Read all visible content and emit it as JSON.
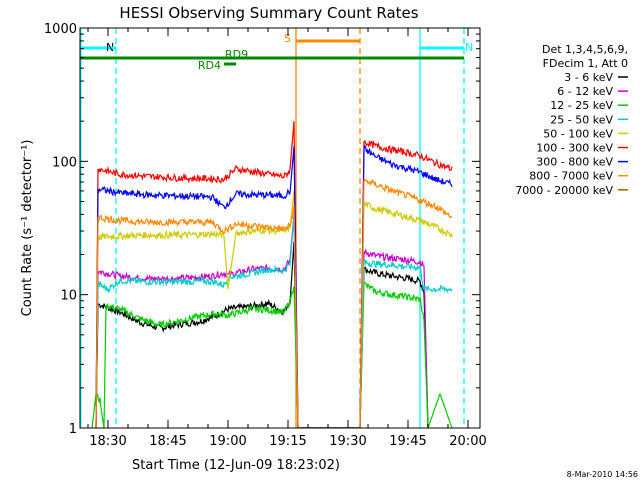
{
  "chart_data": {
    "type": "line",
    "title": "HESSI Observing Summary Count Rates",
    "xlabel": "Start Time (12-Jun-09 18:23:02)",
    "ylabel": "Count Rate (s⁻¹ detector⁻¹)",
    "yscale": "log",
    "xlim_min": [
      23.0,
      123.0
    ],
    "ylim": [
      1,
      1000
    ],
    "x_tick_labels": [
      "18:30",
      "18:45",
      "19:00",
      "19:15",
      "19:30",
      "19:45",
      "20:00"
    ],
    "x_tick_minutes": [
      30,
      45,
      60,
      75,
      90,
      105,
      120
    ],
    "y_tick_labels": [
      "1",
      "10",
      "100",
      "1000"
    ],
    "y_tick_values": [
      1,
      10,
      100,
      1000
    ],
    "legend_placement": "right",
    "legend_header": [
      "Det 1,3,4,5,6,9,",
      "FDecim 1, Att 0"
    ],
    "series": [
      {
        "name": "3 - 6 keV",
        "color": "#000000",
        "points": [
          [
            27,
            1
          ],
          [
            27.5,
            8.5
          ],
          [
            29,
            8.2
          ],
          [
            33,
            7.4
          ],
          [
            38,
            6.2
          ],
          [
            43,
            5.6
          ],
          [
            48,
            6.0
          ],
          [
            53,
            6.3
          ],
          [
            57,
            7.0
          ],
          [
            60,
            7.8
          ],
          [
            66,
            8.2
          ],
          [
            70,
            8.6
          ],
          [
            74,
            7.4
          ],
          [
            75.5,
            9
          ],
          [
            76.5,
            25
          ],
          [
            77.5,
            1
          ],
          [
            93,
            1
          ],
          [
            94,
            15.5
          ],
          [
            97,
            14.5
          ],
          [
            101,
            13.8
          ],
          [
            105,
            13.2
          ],
          [
            108,
            12.6
          ],
          [
            109,
            10.5
          ],
          [
            110,
            1
          ]
        ]
      },
      {
        "name": "6 - 12 keV",
        "color": "#cc00cc",
        "points": [
          [
            27,
            1
          ],
          [
            27.5,
            15
          ],
          [
            33,
            13.8
          ],
          [
            40,
            13.2
          ],
          [
            48,
            13.2
          ],
          [
            56,
            13.8
          ],
          [
            59,
            14.5
          ],
          [
            60,
            14
          ],
          [
            66,
            15.5
          ],
          [
            70,
            15.8
          ],
          [
            74,
            15.5
          ],
          [
            75.5,
            18
          ],
          [
            76.5,
            40
          ],
          [
            77.5,
            1
          ],
          [
            93,
            1
          ],
          [
            94,
            21
          ],
          [
            97,
            19.5
          ],
          [
            101,
            18.8
          ],
          [
            105,
            18.2
          ],
          [
            108,
            17.6
          ],
          [
            109,
            16.5
          ],
          [
            110,
            1
          ]
        ]
      },
      {
        "name": "12 - 25 keV",
        "color": "#00cc00",
        "points": [
          [
            26,
            1
          ],
          [
            27,
            1.8
          ],
          [
            28,
            1.6
          ],
          [
            29,
            1
          ],
          [
            29.5,
            8.3
          ],
          [
            33,
            7.8
          ],
          [
            38,
            6.6
          ],
          [
            43,
            5.9
          ],
          [
            48,
            6.4
          ],
          [
            52,
            6.8
          ],
          [
            57,
            7.2
          ],
          [
            60,
            7.0
          ],
          [
            66,
            7.8
          ],
          [
            70,
            7.7
          ],
          [
            74,
            7.3
          ],
          [
            75.5,
            9
          ],
          [
            76.5,
            12
          ],
          [
            77.5,
            1
          ],
          [
            93,
            1
          ],
          [
            94,
            12
          ],
          [
            97,
            10.5
          ],
          [
            101,
            10
          ],
          [
            105,
            9.6
          ],
          [
            108,
            9.2
          ],
          [
            109,
            6.5
          ],
          [
            110,
            1
          ],
          [
            113,
            1.8
          ],
          [
            116,
            1
          ]
        ]
      },
      {
        "name": "25 - 50 keV",
        "color": "#00cccc",
        "points": [
          [
            27,
            1
          ],
          [
            27.5,
            12
          ],
          [
            30,
            11
          ],
          [
            33,
            12.8
          ],
          [
            40,
            12.5
          ],
          [
            48,
            12.5
          ],
          [
            56,
            12.6
          ],
          [
            59,
            11.8
          ],
          [
            60,
            13.5
          ],
          [
            66,
            14.5
          ],
          [
            70,
            15.5
          ],
          [
            74,
            15.2
          ],
          [
            75.5,
            17
          ],
          [
            76.5,
            40
          ],
          [
            77.5,
            1
          ],
          [
            93,
            1
          ],
          [
            94,
            17.5
          ],
          [
            97,
            17
          ],
          [
            101,
            16.7
          ],
          [
            105,
            16.2
          ],
          [
            108,
            16
          ],
          [
            109,
            11
          ],
          [
            113,
            11
          ],
          [
            116,
            11
          ]
        ]
      },
      {
        "name": "50 - 100 keV",
        "color": "#cccc00",
        "points": [
          [
            27,
            1
          ],
          [
            27.5,
            27
          ],
          [
            33,
            27.5
          ],
          [
            40,
            28
          ],
          [
            48,
            28
          ],
          [
            56,
            28.5
          ],
          [
            59,
            28
          ],
          [
            60,
            11
          ],
          [
            62,
            29
          ],
          [
            66,
            30
          ],
          [
            70,
            30.5
          ],
          [
            74,
            30
          ],
          [
            75.5,
            32
          ],
          [
            76.5,
            60
          ],
          [
            77.5,
            1
          ],
          [
            93,
            1
          ],
          [
            94,
            48
          ],
          [
            97,
            44
          ],
          [
            101,
            41
          ],
          [
            105,
            38
          ],
          [
            108,
            36
          ],
          [
            112,
            32
          ],
          [
            116,
            28
          ]
        ]
      },
      {
        "name": "100 - 300 keV",
        "color": "#ff0000",
        "points": [
          [
            27,
            1
          ],
          [
            27.5,
            88
          ],
          [
            30,
            84
          ],
          [
            33,
            80
          ],
          [
            40,
            77
          ],
          [
            48,
            75
          ],
          [
            56,
            74
          ],
          [
            59,
            73
          ],
          [
            62,
            88
          ],
          [
            66,
            84
          ],
          [
            70,
            80
          ],
          [
            74,
            77
          ],
          [
            75.5,
            85
          ],
          [
            76.5,
            200
          ],
          [
            77.5,
            1
          ],
          [
            93,
            1
          ],
          [
            94,
            140
          ],
          [
            97,
            130
          ],
          [
            101,
            122
          ],
          [
            105,
            116
          ],
          [
            108,
            110
          ],
          [
            112,
            97
          ],
          [
            116,
            87
          ]
        ]
      },
      {
        "name": "300 - 800 keV",
        "color": "#0000ff",
        "points": [
          [
            27,
            1
          ],
          [
            27.5,
            62
          ],
          [
            30,
            60
          ],
          [
            33,
            58
          ],
          [
            40,
            56
          ],
          [
            48,
            55
          ],
          [
            56,
            54
          ],
          [
            59,
            45
          ],
          [
            62,
            57
          ],
          [
            66,
            56
          ],
          [
            70,
            56
          ],
          [
            74,
            55
          ],
          [
            75.5,
            60
          ],
          [
            76.5,
            130
          ],
          [
            77.5,
            1
          ],
          [
            93,
            1
          ],
          [
            94,
            125
          ],
          [
            97,
            108
          ],
          [
            101,
            95
          ],
          [
            105,
            88
          ],
          [
            108,
            83
          ],
          [
            112,
            73
          ],
          [
            116,
            67
          ]
        ]
      },
      {
        "name": "800 - 7000 keV",
        "color": "#ff8800",
        "points": [
          [
            27,
            1
          ],
          [
            27.5,
            38
          ],
          [
            30,
            37
          ],
          [
            33,
            36
          ],
          [
            40,
            35
          ],
          [
            48,
            35
          ],
          [
            56,
            35
          ],
          [
            59,
            30
          ],
          [
            62,
            34
          ],
          [
            66,
            33
          ],
          [
            70,
            32
          ],
          [
            74,
            31
          ],
          [
            75.5,
            33
          ],
          [
            76.5,
            45
          ],
          [
            77.5,
            1
          ],
          [
            93,
            1
          ],
          [
            94,
            72
          ],
          [
            97,
            67
          ],
          [
            101,
            60
          ],
          [
            105,
            55
          ],
          [
            108,
            51
          ],
          [
            112,
            46
          ],
          [
            116,
            38
          ]
        ]
      },
      {
        "name": "7000 - 20000 keV",
        "color": "#996600",
        "points": []
      }
    ],
    "annotations": [
      {
        "label": "N",
        "color": "#00ffff",
        "start_min": 23,
        "end_min": 32
      },
      {
        "label": "N",
        "color": "#00ffff",
        "start_min": 108,
        "end_min": 119
      },
      {
        "label": "S",
        "color": "#ff8800",
        "start_min": 77,
        "end_min": 93
      },
      {
        "label": "RD9",
        "color": "#008800",
        "start_min": 23,
        "end_min": 119
      },
      {
        "label": "RD4",
        "color": "#008800",
        "start_min": 59,
        "end_min": 62
      }
    ],
    "vertical_markers": [
      {
        "color": "#00ffff",
        "style": "solid",
        "at_min": 23.2
      },
      {
        "color": "#00ffff",
        "style": "dashed",
        "at_min": 32
      },
      {
        "color": "#00ffff",
        "style": "solid",
        "at_min": 108
      },
      {
        "color": "#00ffff",
        "style": "dashed",
        "at_min": 119
      },
      {
        "color": "#ff8800",
        "style": "solid",
        "at_min": 77
      },
      {
        "color": "#ff8800",
        "style": "dashed",
        "at_min": 93
      }
    ]
  },
  "footer": {
    "timestamp": "8-Mar-2010 14:56"
  }
}
